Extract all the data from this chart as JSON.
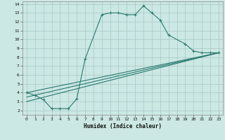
{
  "xlabel": "Humidex (Indice chaleur)",
  "bg_color": "#cce8e4",
  "grid_color": "#aacccc",
  "line_color": "#2a7a70",
  "xlim": [
    -0.5,
    23.5
  ],
  "ylim": [
    1.5,
    14.3
  ],
  "xticks": [
    0,
    1,
    2,
    3,
    4,
    5,
    6,
    7,
    8,
    9,
    10,
    11,
    12,
    13,
    14,
    15,
    16,
    17,
    18,
    19,
    20,
    21,
    22,
    23
  ],
  "yticks": [
    2,
    3,
    4,
    5,
    6,
    7,
    8,
    9,
    10,
    11,
    12,
    13,
    14
  ],
  "series1_x": [
    0,
    1,
    2,
    3,
    4,
    5,
    6,
    7,
    9,
    10,
    11,
    12,
    13,
    14,
    15,
    16,
    17,
    19,
    20,
    21,
    22,
    23
  ],
  "series1_y": [
    4.0,
    3.7,
    3.2,
    2.2,
    2.2,
    2.2,
    3.3,
    7.8,
    12.8,
    13.0,
    13.0,
    12.8,
    12.8,
    13.8,
    13.0,
    12.2,
    10.5,
    9.5,
    8.7,
    8.5,
    8.5,
    8.5
  ],
  "line2_x": [
    0,
    23
  ],
  "line2_y": [
    4.0,
    8.5
  ],
  "line3_x": [
    0,
    23
  ],
  "line3_y": [
    3.5,
    8.5
  ],
  "line4_x": [
    0,
    23
  ],
  "line4_y": [
    3.0,
    8.5
  ]
}
